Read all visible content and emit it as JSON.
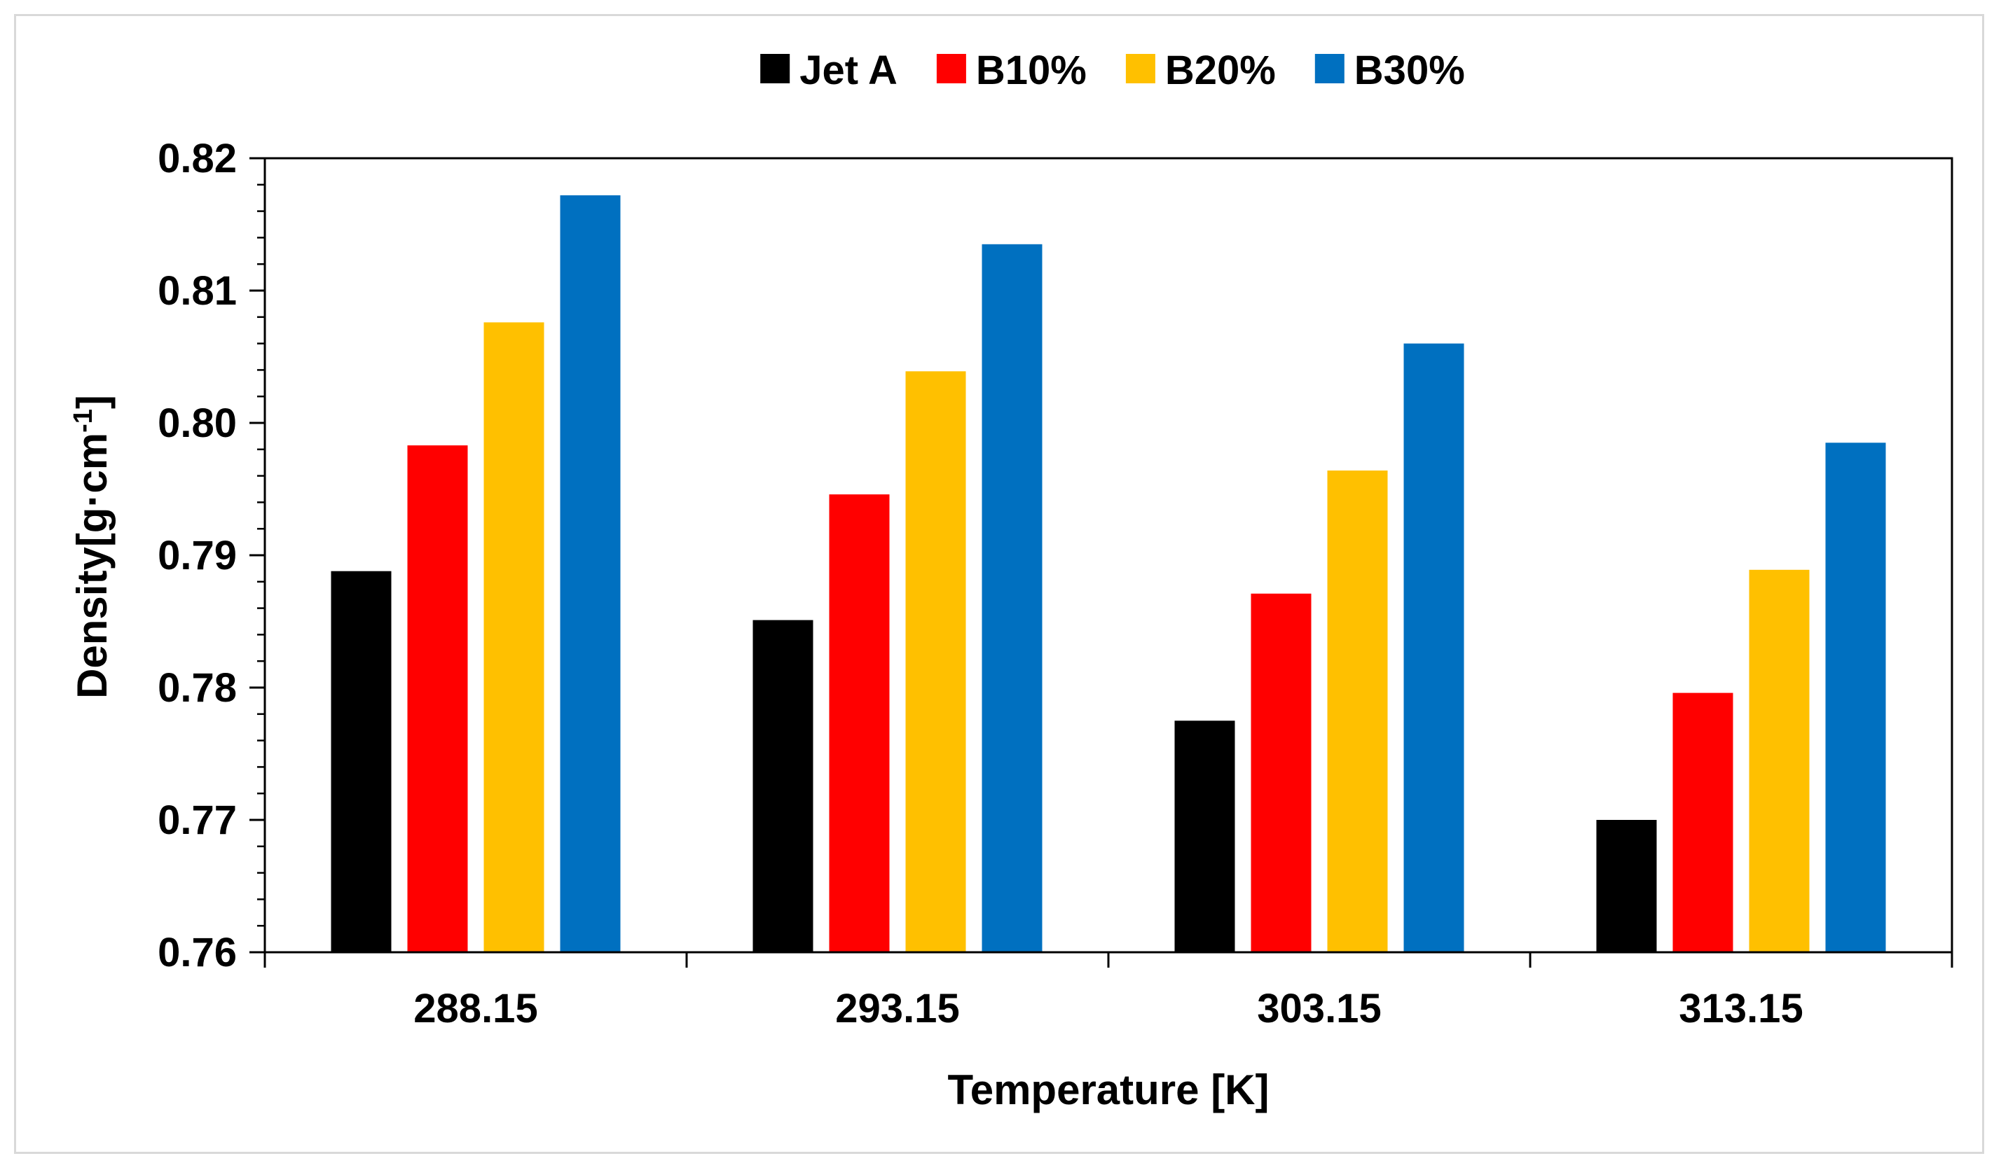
{
  "chart_data": {
    "type": "bar",
    "title": "",
    "xlabel": "Temperature [K]",
    "ylabel": {
      "main": "Density[g·cm",
      "superscript": "-1",
      "close": "]"
    },
    "categories": [
      "288.15",
      "293.15",
      "303.15",
      "313.15"
    ],
    "ylim": [
      0.76,
      0.82
    ],
    "yticks": [
      0.76,
      0.77,
      0.78,
      0.79,
      0.8,
      0.81,
      0.82
    ],
    "ytick_labels": [
      "0.76",
      "0.77",
      "0.78",
      "0.79",
      "0.80",
      "0.81",
      "0.82"
    ],
    "minor_ticks_per_interval": 5,
    "grid": false,
    "legend_position": "top-center",
    "series": [
      {
        "name": "Jet A",
        "color": "#000000",
        "values": [
          0.7888,
          0.7851,
          0.7775,
          0.77
        ]
      },
      {
        "name": "B10%",
        "color": "#ff0000",
        "values": [
          0.7983,
          0.7946,
          0.7871,
          0.7796
        ]
      },
      {
        "name": "B20%",
        "color": "#ffc000",
        "values": [
          0.8076,
          0.8039,
          0.7964,
          0.7889
        ]
      },
      {
        "name": "B30%",
        "color": "#0070c0",
        "values": [
          0.8172,
          0.8135,
          0.806,
          0.7985
        ]
      }
    ]
  }
}
